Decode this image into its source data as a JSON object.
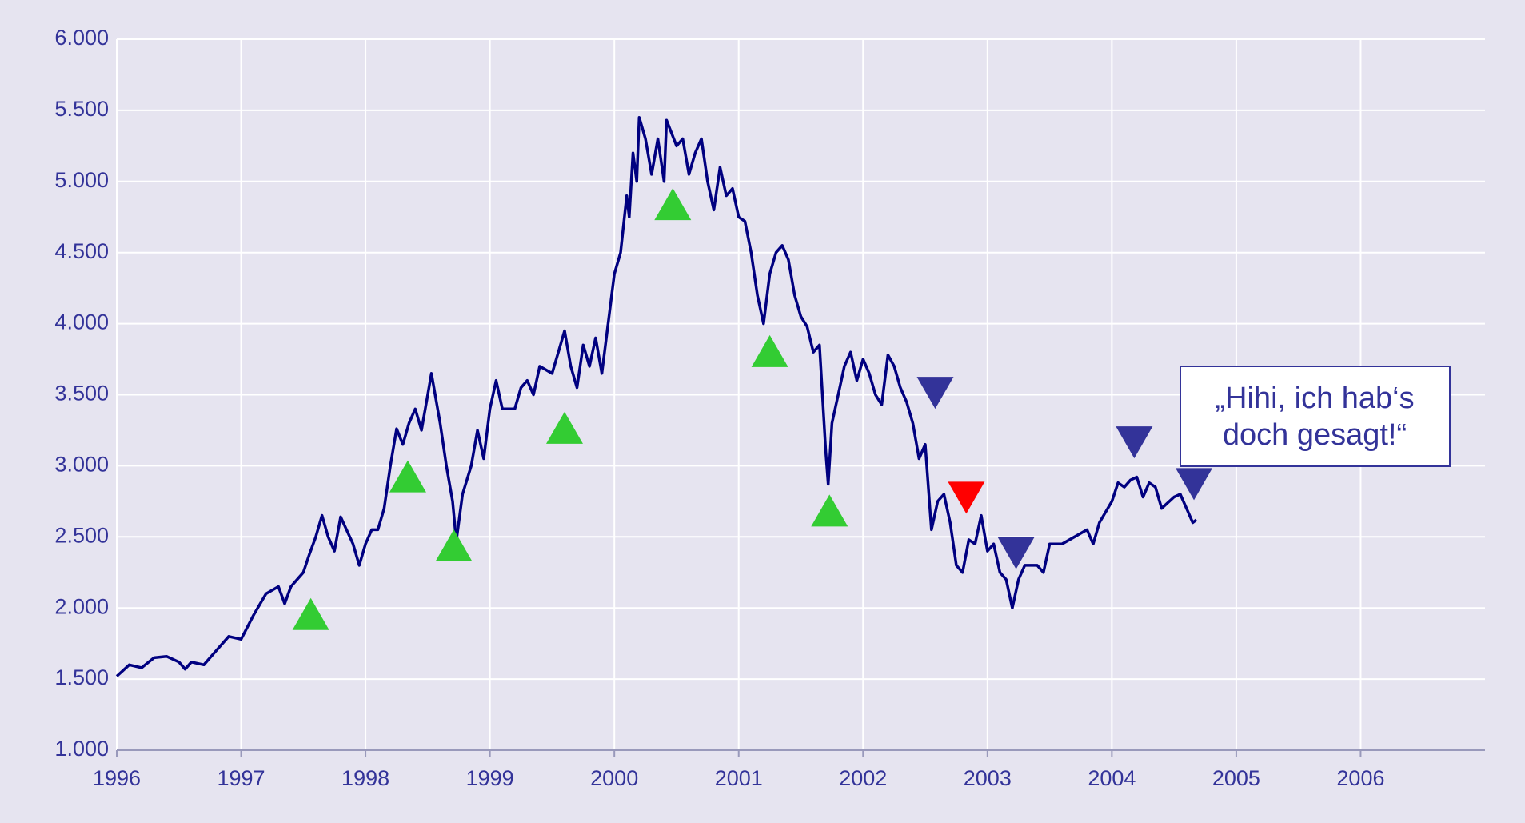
{
  "chart_data": {
    "type": "line",
    "xlim": [
      1996,
      2007
    ],
    "xticks": [
      1996,
      1997,
      1998,
      1999,
      2000,
      2001,
      2002,
      2003,
      2004,
      2005,
      2006
    ],
    "ylim": [
      1000,
      6000
    ],
    "yticks": [
      {
        "value": 1000,
        "label": "1.000"
      },
      {
        "value": 1500,
        "label": "1.500"
      },
      {
        "value": 2000,
        "label": "2.000"
      },
      {
        "value": 2500,
        "label": "2.500"
      },
      {
        "value": 3000,
        "label": "3.000"
      },
      {
        "value": 3500,
        "label": "3.500"
      },
      {
        "value": 4000,
        "label": "4.000"
      },
      {
        "value": 4500,
        "label": "4.500"
      },
      {
        "value": 5000,
        "label": "5.000"
      },
      {
        "value": 5500,
        "label": "5.500"
      },
      {
        "value": 6000,
        "label": "6.000"
      }
    ],
    "grid": true,
    "series": [
      {
        "color": "#000080",
        "x": [
          1996.0,
          1996.1,
          1996.2,
          1996.3,
          1996.4,
          1996.5,
          1996.55,
          1996.6,
          1996.7,
          1996.8,
          1996.9,
          1997.0,
          1997.1,
          1997.2,
          1997.3,
          1997.35,
          1997.4,
          1997.5,
          1997.55,
          1997.6,
          1997.65,
          1997.7,
          1997.75,
          1997.8,
          1997.9,
          1997.95,
          1998.0,
          1998.05,
          1998.1,
          1998.15,
          1998.2,
          1998.25,
          1998.3,
          1998.35,
          1998.4,
          1998.45,
          1998.5,
          1998.53,
          1998.6,
          1998.65,
          1998.7,
          1998.73,
          1998.78,
          1998.85,
          1998.9,
          1998.95,
          1999.0,
          1999.05,
          1999.1,
          1999.2,
          1999.25,
          1999.3,
          1999.35,
          1999.4,
          1999.5,
          1999.55,
          1999.6,
          1999.65,
          1999.7,
          1999.75,
          1999.8,
          1999.85,
          1999.9,
          1999.95,
          2000.0,
          2000.05,
          2000.1,
          2000.12,
          2000.15,
          2000.18,
          2000.2,
          2000.25,
          2000.3,
          2000.35,
          2000.4,
          2000.42,
          2000.5,
          2000.55,
          2000.6,
          2000.65,
          2000.7,
          2000.75,
          2000.8,
          2000.85,
          2000.9,
          2000.95,
          2001.0,
          2001.05,
          2001.1,
          2001.15,
          2001.2,
          2001.25,
          2001.3,
          2001.35,
          2001.4,
          2001.45,
          2001.5,
          2001.55,
          2001.6,
          2001.65,
          2001.7,
          2001.72,
          2001.75,
          2001.8,
          2001.85,
          2001.9,
          2001.95,
          2002.0,
          2002.05,
          2002.1,
          2002.15,
          2002.2,
          2002.25,
          2002.3,
          2002.35,
          2002.4,
          2002.45,
          2002.5,
          2002.55,
          2002.6,
          2002.65,
          2002.7,
          2002.75,
          2002.8,
          2002.85,
          2002.9,
          2002.95,
          2003.0,
          2003.05,
          2003.1,
          2003.15,
          2003.2,
          2003.25,
          2003.3,
          2003.4,
          2003.45,
          2003.5,
          2003.6,
          2003.7,
          2003.8,
          2003.85,
          2003.9,
          2004.0,
          2004.05,
          2004.1,
          2004.15,
          2004.2,
          2004.25,
          2004.3,
          2004.35,
          2004.4,
          2004.5,
          2004.55,
          2004.6,
          2004.65,
          2004.68
        ],
        "values": [
          1520,
          1600,
          1580,
          1650,
          1660,
          1620,
          1570,
          1620,
          1600,
          1700,
          1800,
          1780,
          1950,
          2100,
          2150,
          2030,
          2150,
          2250,
          2380,
          2500,
          2650,
          2500,
          2400,
          2640,
          2450,
          2300,
          2450,
          2550,
          2550,
          2700,
          3000,
          3260,
          3150,
          3300,
          3400,
          3250,
          3500,
          3650,
          3300,
          3000,
          2750,
          2470,
          2800,
          3000,
          3250,
          3050,
          3400,
          3600,
          3400,
          3400,
          3550,
          3600,
          3500,
          3700,
          3650,
          3800,
          3950,
          3700,
          3550,
          3850,
          3700,
          3900,
          3650,
          4000,
          4350,
          4500,
          4900,
          4750,
          5200,
          5000,
          5450,
          5300,
          5050,
          5300,
          5000,
          5430,
          5250,
          5300,
          5050,
          5200,
          5300,
          5000,
          4800,
          5100,
          4900,
          4950,
          4750,
          4720,
          4500,
          4200,
          4000,
          4350,
          4500,
          4550,
          4450,
          4200,
          4050,
          3980,
          3800,
          3850,
          3100,
          2870,
          3300,
          3500,
          3700,
          3800,
          3600,
          3750,
          3650,
          3500,
          3430,
          3780,
          3700,
          3550,
          3450,
          3300,
          3050,
          3150,
          2550,
          2750,
          2800,
          2600,
          2300,
          2250,
          2480,
          2450,
          2650,
          2400,
          2450,
          2250,
          2200,
          2000,
          2200,
          2300,
          2300,
          2250,
          2450,
          2450,
          2500,
          2550,
          2450,
          2600,
          2750,
          2880,
          2850,
          2900,
          2920,
          2780,
          2880,
          2850,
          2700,
          2780,
          2800,
          2700,
          2600,
          2620
        ]
      }
    ],
    "markers": [
      {
        "direction": "up",
        "color": "#33cc33",
        "x": [
          1997.56,
          1998.34,
          1998.71,
          1999.6,
          2000.47,
          2001.25,
          2001.73
        ],
        "values": [
          1920,
          2888,
          2402,
          3230,
          4803,
          3770,
          2648
        ]
      },
      {
        "direction": "down",
        "color": "#333399",
        "x": [
          2002.58,
          2003.23,
          2004.18,
          2004.66
        ],
        "values": [
          3551,
          2423,
          3202,
          2908
        ]
      },
      {
        "direction": "down",
        "color": "#ff0000",
        "x": [
          2002.83
        ],
        "values": [
          2813
        ]
      }
    ],
    "annotation": [
      "„Hihi, ich hab‘s",
      "doch gesagt!“"
    ]
  }
}
